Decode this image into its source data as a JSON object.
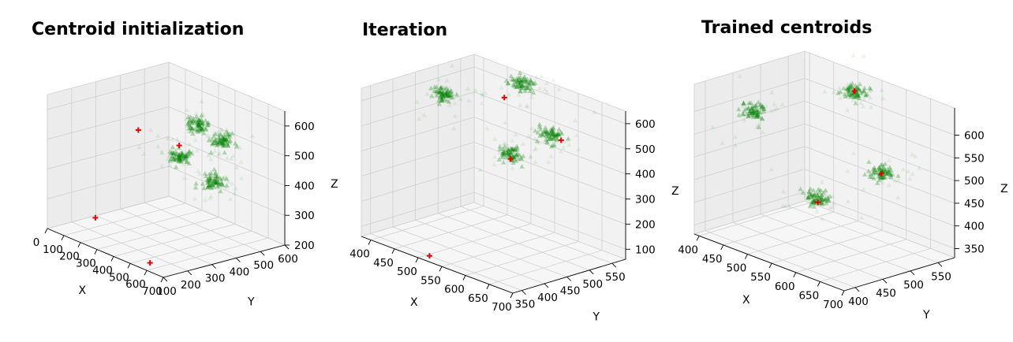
{
  "chart_data": [
    {
      "type": "scatter3d",
      "title": "Centroid initialization",
      "xlabel": "X",
      "ylabel": "Y",
      "zlabel": "Z",
      "xlim": [
        0,
        700
      ],
      "ylim": [
        100,
        600
      ],
      "zlim": [
        200,
        650
      ],
      "xticks": [
        "0",
        "100",
        "200",
        "300",
        "400",
        "500",
        "600",
        "700"
      ],
      "yticks": [
        "100",
        "200",
        "300",
        "400",
        "500",
        "600"
      ],
      "zticks": [
        "200",
        "300",
        "400",
        "500",
        "600"
      ],
      "series": [
        {
          "marker": "triangle",
          "color": "#008000",
          "clusters": [
            {
              "center": [
                420,
                430,
                575
              ]
            },
            {
              "center": [
                440,
                520,
                505
              ]
            },
            {
              "center": [
                460,
                330,
                500
              ]
            },
            {
              "center": [
                600,
                380,
                440
              ]
            }
          ]
        },
        {
          "marker": "plus",
          "color": "#e00000",
          "points": [
            [
              80,
              420,
              480
            ],
            [
              70,
              250,
              220
            ],
            [
              180,
              520,
              430
            ],
            [
              620,
              100,
              230
            ]
          ]
        }
      ],
      "grid": true
    },
    {
      "type": "scatter3d",
      "title": "Iteration",
      "xlabel": "X",
      "ylabel": "Y",
      "zlabel": "Z",
      "xlim": [
        380,
        700
      ],
      "ylim": [
        330,
        580
      ],
      "zlim": [
        60,
        650
      ],
      "xticks": [
        "400",
        "450",
        "500",
        "550",
        "600",
        "650",
        "700"
      ],
      "yticks": [
        "350",
        "400",
        "450",
        "500",
        "550"
      ],
      "zticks": [
        "100",
        "200",
        "300",
        "400",
        "500",
        "600"
      ],
      "series": [
        {
          "marker": "triangle",
          "color": "#008000",
          "clusters": [
            {
              "center": [
                430,
                460,
                590
              ]
            },
            {
              "center": [
                520,
                540,
                650
              ]
            },
            {
              "center": [
                600,
                430,
                490
              ]
            },
            {
              "center": [
                620,
                500,
                540
              ]
            }
          ]
        },
        {
          "marker": "plus",
          "color": "#e00000",
          "points": [
            [
              520,
              500,
              620
            ],
            [
              640,
              500,
              535
            ],
            [
              600,
              430,
              470
            ],
            [
              505,
              350,
              60
            ]
          ]
        }
      ],
      "grid": true
    },
    {
      "type": "scatter3d",
      "title": "Trained centroids",
      "xlabel": "X",
      "ylabel": "Y",
      "zlabel": "Z",
      "xlim": [
        390,
        700
      ],
      "ylim": [
        380,
        580
      ],
      "zlim": [
        330,
        660
      ],
      "xticks": [
        "400",
        "450",
        "500",
        "550",
        "600",
        "650",
        "700"
      ],
      "yticks": [
        "400",
        "450",
        "500",
        "550"
      ],
      "zticks": [
        "350",
        "400",
        "450",
        "500",
        "550",
        "600"
      ],
      "series": [
        {
          "marker": "triangle",
          "color": "#008000",
          "clusters": [
            {
              "center": [
                420,
                460,
                585
              ]
            },
            {
              "center": [
                550,
                530,
                650
              ]
            },
            {
              "center": [
                600,
                420,
                480
              ]
            },
            {
              "center": [
                640,
                500,
                520
              ]
            }
          ]
        },
        {
          "marker": "plus",
          "color": "#e00000",
          "points": [
            [
              550,
              530,
              655
            ],
            [
              640,
              500,
              520
            ],
            [
              600,
              420,
              470
            ]
          ]
        }
      ],
      "grid": true
    }
  ]
}
